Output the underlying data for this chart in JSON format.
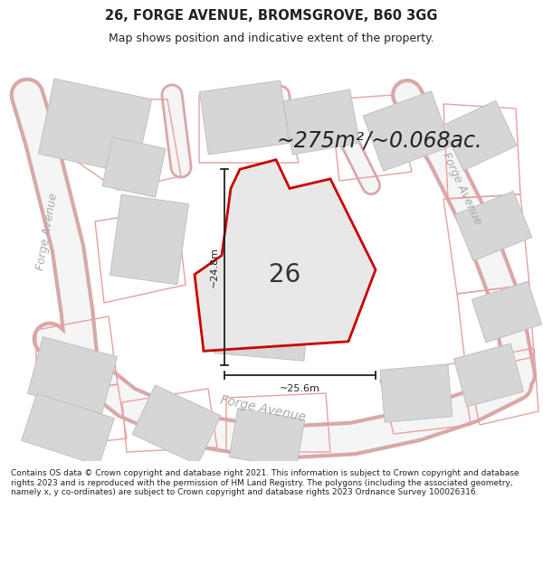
{
  "title": "26, FORGE AVENUE, BROMSGROVE, B60 3GG",
  "subtitle": "Map shows position and indicative extent of the property.",
  "area_text": "~275m²/~0.068ac.",
  "label_26": "26",
  "dim_vertical": "~24.8m",
  "dim_horizontal": "~25.6m",
  "footer_text": "Contains OS data © Crown copyright and database right 2021. This information is subject to Crown copyright and database rights 2023 and is reproduced with the permission of HM Land Registry. The polygons (including the associated geometry, namely x, y co-ordinates) are subject to Crown copyright and database rights 2023 Ordnance Survey 100026316.",
  "bg_map": "#ece9e5",
  "bg_white": "#ffffff",
  "road_fill": "#f5f5f5",
  "road_edge": "#d8a8a8",
  "building_fill": "#d6d6d6",
  "building_edge": "#c0c0c0",
  "plot_outline": "#cc0000",
  "plot_fill": "#e8e8e8",
  "neighbor_outline": "#e8a0a0",
  "dim_color": "#222222",
  "text_color": "#222222",
  "road_label_color": "#aaaaaa",
  "title_fontsize": 10.5,
  "subtitle_fontsize": 9,
  "area_fontsize": 17,
  "label26_fontsize": 20,
  "dim_fontsize": 8,
  "road_label_fontsize": 9,
  "footer_fontsize": 6.5
}
